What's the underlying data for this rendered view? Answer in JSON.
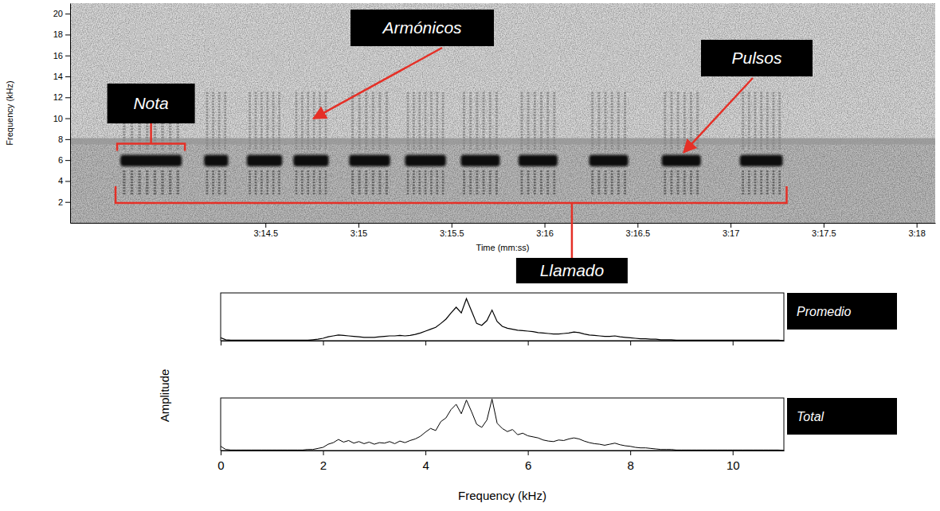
{
  "chart_data": [
    {
      "type": "spectrogram",
      "x_label": "Time (mm:ss)",
      "y_label": "Frequency (kHz)",
      "xlim": [
        193.45,
        198.1
      ],
      "xticks": [
        {
          "value": 194.5,
          "label": "3:14.5"
        },
        {
          "value": 195,
          "label": "3:15"
        },
        {
          "value": 195.5,
          "label": "3:15.5"
        },
        {
          "value": 196,
          "label": "3:16"
        },
        {
          "value": 196.5,
          "label": "3:16.5"
        },
        {
          "value": 197,
          "label": "3:17"
        },
        {
          "value": 197.5,
          "label": "3:17.5"
        },
        {
          "value": 198,
          "label": "3:18"
        }
      ],
      "ylim": [
        0,
        21
      ],
      "yticks": [
        2,
        4,
        6,
        8,
        10,
        12,
        14,
        16,
        18,
        20
      ],
      "noise_band": {
        "low": 7.5,
        "high": 8.1,
        "intensity": 0.5
      },
      "tone": {
        "low": 5.4,
        "high": 6.5,
        "intensity": 0.95
      },
      "bands": [
        {
          "low": 2.6,
          "high": 5.0,
          "intensity": 0.7
        },
        {
          "low": 7.0,
          "high": 12.5,
          "intensity": 0.55
        },
        {
          "low": 14.0,
          "high": 19.0,
          "intensity": 0.35
        }
      ],
      "notes": [
        {
          "start": 193.72,
          "end": 194.05,
          "pulses": 8
        },
        {
          "start": 194.17,
          "end": 194.3,
          "pulses": 4
        },
        {
          "start": 194.4,
          "end": 194.59,
          "pulses": 6
        },
        {
          "start": 194.65,
          "end": 194.84,
          "pulses": 6
        },
        {
          "start": 194.95,
          "end": 195.17,
          "pulses": 6
        },
        {
          "start": 195.25,
          "end": 195.47,
          "pulses": 7
        },
        {
          "start": 195.55,
          "end": 195.76,
          "pulses": 6
        },
        {
          "start": 195.86,
          "end": 196.07,
          "pulses": 6
        },
        {
          "start": 196.24,
          "end": 196.45,
          "pulses": 6
        },
        {
          "start": 196.63,
          "end": 196.84,
          "pulses": 6
        },
        {
          "start": 197.05,
          "end": 197.28,
          "pulses": 7
        }
      ],
      "annotations": [
        "Nota",
        "Armónicos",
        "Pulsos",
        "Llamado"
      ]
    },
    {
      "type": "line",
      "x_label": "Frequency (kHz)",
      "y_label": "Amplitude",
      "xlim": [
        0,
        11
      ],
      "xticks": [
        0,
        2,
        4,
        6,
        8,
        10
      ],
      "ylim": [
        0,
        1
      ],
      "tick_labels": "x",
      "color": "#000000",
      "x": [
        0,
        0.1,
        0.2,
        0.3,
        0.4,
        0.5,
        0.6,
        0.7,
        0.8,
        0.9,
        1,
        1.1,
        1.2,
        1.3,
        1.4,
        1.5,
        1.6,
        1.7,
        1.8,
        1.9,
        2,
        2.1,
        2.2,
        2.3,
        2.4,
        2.5,
        2.6,
        2.7,
        2.8,
        2.9,
        3,
        3.1,
        3.2,
        3.3,
        3.4,
        3.5,
        3.6,
        3.7,
        3.8,
        3.9,
        4,
        4.1,
        4.2,
        4.3,
        4.4,
        4.5,
        4.6,
        4.7,
        4.8,
        4.9,
        5,
        5.1,
        5.2,
        5.3,
        5.4,
        5.5,
        5.6,
        5.7,
        5.8,
        5.9,
        6,
        6.1,
        6.2,
        6.3,
        6.4,
        6.5,
        6.6,
        6.7,
        6.8,
        6.9,
        7,
        7.1,
        7.2,
        7.3,
        7.4,
        7.5,
        7.6,
        7.7,
        7.8,
        7.9,
        8,
        8.1,
        8.2,
        8.3,
        8.4,
        8.5,
        8.6,
        8.7,
        8.8,
        8.9,
        9,
        9.1,
        9.2,
        9.3,
        9.4,
        9.5,
        9.6,
        9.7,
        9.8,
        9.9,
        10,
        10.1,
        10.2,
        10.3,
        10.4,
        10.5,
        10.6,
        10.7,
        10.8,
        10.9,
        11
      ],
      "series": [
        {
          "name": "Promedio",
          "values": [
            0.06,
            0.02,
            0.01,
            0.01,
            0.01,
            0.01,
            0.01,
            0.01,
            0.01,
            0.01,
            0.01,
            0.01,
            0.01,
            0.01,
            0.01,
            0.01,
            0.01,
            0.01,
            0.02,
            0.03,
            0.05,
            0.08,
            0.1,
            0.12,
            0.11,
            0.1,
            0.09,
            0.08,
            0.07,
            0.07,
            0.07,
            0.08,
            0.09,
            0.1,
            0.1,
            0.11,
            0.1,
            0.11,
            0.13,
            0.16,
            0.2,
            0.24,
            0.28,
            0.36,
            0.45,
            0.58,
            0.7,
            0.58,
            0.88,
            0.62,
            0.36,
            0.32,
            0.42,
            0.64,
            0.4,
            0.3,
            0.26,
            0.24,
            0.22,
            0.21,
            0.2,
            0.19,
            0.17,
            0.16,
            0.15,
            0.14,
            0.14,
            0.15,
            0.16,
            0.18,
            0.17,
            0.14,
            0.12,
            0.11,
            0.1,
            0.09,
            0.09,
            0.1,
            0.08,
            0.07,
            0.06,
            0.05,
            0.04,
            0.04,
            0.03,
            0.03,
            0.02,
            0.02,
            0.02,
            0.01,
            0.01,
            0.01,
            0.01,
            0.01,
            0.01,
            0.01,
            0.01,
            0.01,
            0.01,
            0.01,
            0.01,
            0.01,
            0.01,
            0.01,
            0.01,
            0.01,
            0.01,
            0.01,
            0.01,
            0.01,
            0
          ]
        },
        {
          "name": "Total",
          "values": [
            0.08,
            0.02,
            0.01,
            0.01,
            0.01,
            0.01,
            0.01,
            0.01,
            0.01,
            0.01,
            0.01,
            0.01,
            0.01,
            0.01,
            0.01,
            0.01,
            0.01,
            0.02,
            0.02,
            0.04,
            0.06,
            0.12,
            0.15,
            0.21,
            0.16,
            0.19,
            0.14,
            0.17,
            0.13,
            0.16,
            0.12,
            0.15,
            0.14,
            0.17,
            0.13,
            0.18,
            0.15,
            0.19,
            0.22,
            0.27,
            0.35,
            0.42,
            0.38,
            0.55,
            0.62,
            0.78,
            0.88,
            0.7,
            0.96,
            0.74,
            0.5,
            0.44,
            0.58,
            0.98,
            0.52,
            0.42,
            0.36,
            0.4,
            0.3,
            0.33,
            0.28,
            0.26,
            0.24,
            0.2,
            0.18,
            0.17,
            0.2,
            0.19,
            0.22,
            0.24,
            0.22,
            0.18,
            0.15,
            0.13,
            0.12,
            0.1,
            0.12,
            0.14,
            0.11,
            0.09,
            0.08,
            0.06,
            0.05,
            0.05,
            0.04,
            0.03,
            0.02,
            0.02,
            0.02,
            0.01,
            0.01,
            0.01,
            0.01,
            0.01,
            0.01,
            0.01,
            0.01,
            0.01,
            0.01,
            0.01,
            0.01,
            0.01,
            0.01,
            0.01,
            0.01,
            0.01,
            0.01,
            0.01,
            0.01,
            0.01,
            0
          ]
        }
      ]
    }
  ]
}
